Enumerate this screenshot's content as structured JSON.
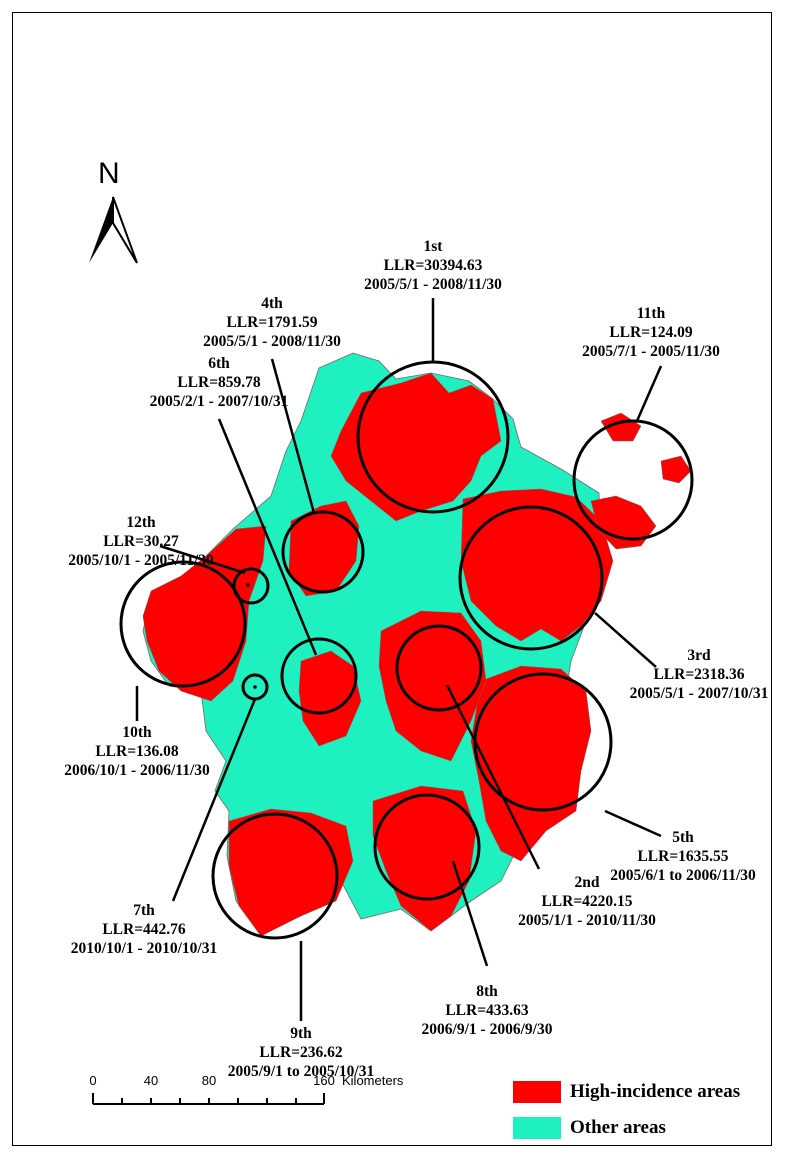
{
  "map": {
    "north_label": "N",
    "colors": {
      "high": "#ff0000",
      "other": "#1ef0c0",
      "boundary": "#6a6a6a",
      "circle": "#000000"
    },
    "clusters": [
      {
        "id": "c1",
        "rank": "1st",
        "llr": "LLR=30394.63",
        "period": "2005/5/1 - 2008/11/30"
      },
      {
        "id": "c2",
        "rank": "2nd",
        "llr": "LLR=4220.15",
        "period": "2005/1/1 - 2010/11/30"
      },
      {
        "id": "c3",
        "rank": "3rd",
        "llr": "LLR=2318.36",
        "period": "2005/5/1 - 2007/10/31"
      },
      {
        "id": "c4",
        "rank": "4th",
        "llr": "LLR=1791.59",
        "period": "2005/5/1 - 2008/11/30"
      },
      {
        "id": "c5",
        "rank": "5th",
        "llr": "LLR=1635.55",
        "period": "2005/6/1 to 2006/11/30"
      },
      {
        "id": "c6",
        "rank": "6th",
        "llr": "LLR=859.78",
        "period": "2005/2/1 - 2007/10/31"
      },
      {
        "id": "c7",
        "rank": "7th",
        "llr": "LLR=442.76",
        "period": "2010/10/1 - 2010/10/31"
      },
      {
        "id": "c8",
        "rank": "8th",
        "llr": "LLR=433.63",
        "period": "2006/9/1 - 2006/9/30"
      },
      {
        "id": "c9",
        "rank": "9th",
        "llr": "LLR=236.62",
        "period": "2005/9/1 to 2005/10/31"
      },
      {
        "id": "c10",
        "rank": "10th",
        "llr": "LLR=136.08",
        "period": "2006/10/1 - 2006/11/30"
      },
      {
        "id": "c11",
        "rank": "11th",
        "llr": "LLR=124.09",
        "period": "2005/7/1 - 2005/11/30"
      },
      {
        "id": "c12",
        "rank": "12th",
        "llr": "LLR=30.27",
        "period": "2005/10/1 - 2005/11/30"
      }
    ],
    "scale_bar": {
      "ticks": [
        "0",
        "40",
        "80",
        "160"
      ],
      "unit": "Kilometers"
    },
    "legend": [
      {
        "label": "High-incidence areas",
        "color": "#ff0000"
      },
      {
        "label": "Other areas",
        "color": "#1ef0c0"
      }
    ]
  }
}
